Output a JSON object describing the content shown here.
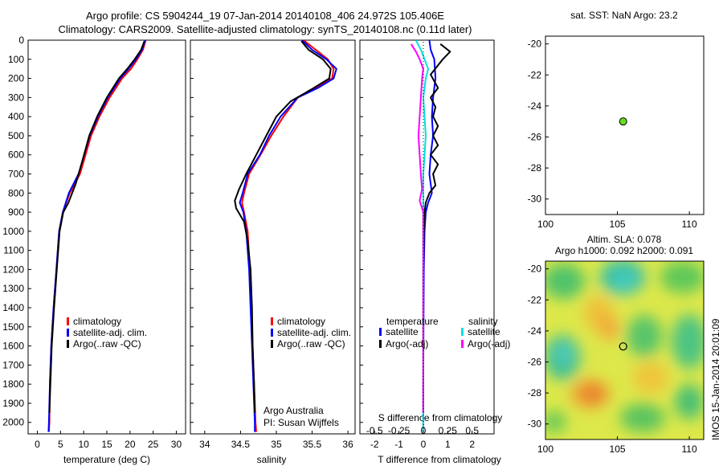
{
  "header": {
    "title_line1": "Argo profile: CS 5904244_19 07-Jan-2014 20140108_406 24.972S 105.406E",
    "title_line2": "Climatology: CARS2009. Satellite-adjusted climatology: synTS_20140108.nc (0.11d later)"
  },
  "colors": {
    "climatology": "#ff0000",
    "satellite": "#0000ff",
    "argo": "#000000",
    "salinity_satellite": "#00e0e0",
    "salinity_argo": "#ff00ff",
    "dot": "#66dd22"
  },
  "chart_data": [
    {
      "type": "line",
      "xlabel": "temperature (deg C)",
      "ylabel": "",
      "xlim": [
        -2,
        32
      ],
      "xticks": [
        0,
        5,
        10,
        15,
        20,
        25,
        30
      ],
      "ylim": [
        2060,
        0
      ],
      "yticks": [
        0,
        100,
        200,
        300,
        400,
        500,
        600,
        700,
        800,
        900,
        1000,
        1100,
        1200,
        1300,
        1400,
        1500,
        1600,
        1700,
        1800,
        1900,
        2000
      ],
      "legend": [
        "climatology",
        "satellite-adj. clim.",
        "Argo(..raw -QC)"
      ],
      "legend_position": "bottom-center",
      "series": [
        {
          "name": "climatology",
          "points": [
            [
              23.4,
              0
            ],
            [
              22.8,
              50
            ],
            [
              21.6,
              100
            ],
            [
              20.2,
              150
            ],
            [
              18.3,
              200
            ],
            [
              15.6,
              300
            ],
            [
              13.4,
              400
            ],
            [
              11.6,
              500
            ],
            [
              10.4,
              600
            ],
            [
              9.2,
              700
            ],
            [
              7.0,
              800
            ],
            [
              5.5,
              900
            ],
            [
              4.7,
              1000
            ],
            [
              4.1,
              1200
            ],
            [
              3.5,
              1400
            ],
            [
              3.0,
              1600
            ],
            [
              2.7,
              1800
            ],
            [
              2.6,
              2000
            ],
            [
              2.5,
              2050
            ]
          ]
        },
        {
          "name": "satellite-adj. clim.",
          "points": [
            [
              23.3,
              0
            ],
            [
              22.6,
              50
            ],
            [
              21.3,
              100
            ],
            [
              19.7,
              150
            ],
            [
              17.9,
              200
            ],
            [
              15.2,
              300
            ],
            [
              13.1,
              400
            ],
            [
              11.3,
              500
            ],
            [
              10.1,
              600
            ],
            [
              8.9,
              700
            ],
            [
              6.8,
              800
            ],
            [
              5.5,
              900
            ],
            [
              4.7,
              1000
            ],
            [
              4.1,
              1200
            ],
            [
              3.5,
              1400
            ],
            [
              3.0,
              1600
            ],
            [
              2.7,
              1800
            ],
            [
              2.5,
              2000
            ],
            [
              2.4,
              2050
            ]
          ]
        },
        {
          "name": "Argo(..raw -QC)",
          "points": [
            [
              23.1,
              5
            ],
            [
              22.4,
              50
            ],
            [
              21.0,
              100
            ],
            [
              19.4,
              150
            ],
            [
              17.6,
              200
            ],
            [
              15.0,
              300
            ],
            [
              12.9,
              400
            ],
            [
              11.2,
              500
            ],
            [
              10.3,
              580
            ],
            [
              9.5,
              650
            ],
            [
              8.3,
              750
            ],
            [
              6.7,
              850
            ],
            [
              5.6,
              900
            ],
            [
              4.8,
              1000
            ],
            [
              4.2,
              1200
            ],
            [
              3.6,
              1400
            ],
            [
              3.1,
              1600
            ],
            [
              2.8,
              1800
            ],
            [
              2.6,
              1950
            ]
          ]
        }
      ]
    },
    {
      "type": "line",
      "xlabel": "salinity",
      "ylabel": "",
      "xlim": [
        33.8,
        36.1
      ],
      "xticks": [
        34,
        34.5,
        35,
        35.5,
        36
      ],
      "ylim": [
        2060,
        0
      ],
      "legend": [
        "climatology",
        "satellite-adj. clim.",
        "Argo(..raw -QC)"
      ],
      "legend_position": "bottom-right",
      "annotation": [
        "Argo Australia",
        "PI: Susan Wijffels"
      ],
      "series": [
        {
          "name": "climatology",
          "points": [
            [
              35.38,
              0
            ],
            [
              35.55,
              50
            ],
            [
              35.72,
              100
            ],
            [
              35.8,
              150
            ],
            [
              35.78,
              200
            ],
            [
              35.55,
              250
            ],
            [
              35.3,
              300
            ],
            [
              35.1,
              400
            ],
            [
              34.93,
              500
            ],
            [
              34.78,
              600
            ],
            [
              34.62,
              700
            ],
            [
              34.55,
              800
            ],
            [
              34.52,
              850
            ],
            [
              34.55,
              900
            ],
            [
              34.6,
              1000
            ],
            [
              34.63,
              1200
            ],
            [
              34.65,
              1400
            ],
            [
              34.67,
              1600
            ],
            [
              34.69,
              1800
            ],
            [
              34.71,
              2000
            ],
            [
              34.72,
              2050
            ]
          ]
        },
        {
          "name": "satellite-adj. clim.",
          "points": [
            [
              35.36,
              0
            ],
            [
              35.5,
              50
            ],
            [
              35.7,
              100
            ],
            [
              35.84,
              150
            ],
            [
              35.8,
              200
            ],
            [
              35.58,
              250
            ],
            [
              35.3,
              300
            ],
            [
              35.06,
              400
            ],
            [
              34.9,
              500
            ],
            [
              34.77,
              600
            ],
            [
              34.6,
              700
            ],
            [
              34.53,
              800
            ],
            [
              34.49,
              850
            ],
            [
              34.54,
              900
            ],
            [
              34.58,
              1000
            ],
            [
              34.62,
              1200
            ],
            [
              34.64,
              1400
            ],
            [
              34.66,
              1600
            ],
            [
              34.68,
              1800
            ],
            [
              34.7,
              2000
            ],
            [
              34.7,
              2050
            ]
          ]
        },
        {
          "name": "Argo(..raw -QC)",
          "points": [
            [
              35.35,
              5
            ],
            [
              35.45,
              50
            ],
            [
              35.65,
              100
            ],
            [
              35.76,
              150
            ],
            [
              35.74,
              200
            ],
            [
              35.48,
              260
            ],
            [
              35.2,
              320
            ],
            [
              35.0,
              400
            ],
            [
              34.86,
              500
            ],
            [
              34.72,
              600
            ],
            [
              34.58,
              700
            ],
            [
              34.48,
              780
            ],
            [
              34.42,
              840
            ],
            [
              34.44,
              880
            ],
            [
              34.55,
              950
            ],
            [
              34.6,
              1050
            ],
            [
              34.64,
              1200
            ],
            [
              34.66,
              1400
            ],
            [
              34.67,
              1600
            ],
            [
              34.69,
              1800
            ],
            [
              34.7,
              1950
            ]
          ]
        }
      ]
    },
    {
      "type": "line",
      "xlabel": "T difference from climatology",
      "top_axis_label": "S difference from climatology",
      "xlim": [
        -2.6,
        2.9
      ],
      "xticks": [
        -2,
        -1,
        0,
        1,
        2
      ],
      "top_tick_labels": [
        "-0.5",
        "-0.25",
        "0",
        "0.25",
        "0.5"
      ],
      "ylim": [
        2060,
        0
      ],
      "legend": {
        "temperature_header": "temperature",
        "salinity_header": "salinity",
        "items": [
          "satellite",
          "Argo(-adj)",
          "satellite",
          "Argo(-adj)"
        ]
      },
      "series": [
        {
          "name": "satellite",
          "group": "temperature",
          "points": [
            [
              0.25,
              0
            ],
            [
              0.3,
              50
            ],
            [
              0.45,
              100
            ],
            [
              0.5,
              200
            ],
            [
              0.4,
              300
            ],
            [
              0.35,
              400
            ],
            [
              0.4,
              500
            ],
            [
              0.3,
              600
            ],
            [
              0.25,
              700
            ],
            [
              0.35,
              800
            ],
            [
              0.2,
              850
            ],
            [
              0.1,
              900
            ],
            [
              0.05,
              1000
            ],
            [
              0.02,
              1200
            ],
            [
              0.01,
              1500
            ],
            [
              0.0,
              1800
            ],
            [
              0.0,
              2050
            ]
          ]
        },
        {
          "name": "Argo(-adj)",
          "group": "temperature",
          "points": [
            [
              0.7,
              20
            ],
            [
              1.1,
              60
            ],
            [
              0.8,
              100
            ],
            [
              0.3,
              180
            ],
            [
              0.6,
              250
            ],
            [
              0.3,
              300
            ],
            [
              0.5,
              350
            ],
            [
              0.4,
              400
            ],
            [
              0.6,
              450
            ],
            [
              0.4,
              500
            ],
            [
              0.6,
              550
            ],
            [
              0.3,
              600
            ],
            [
              0.6,
              650
            ],
            [
              0.4,
              700
            ],
            [
              0.5,
              760
            ],
            [
              0.25,
              800
            ],
            [
              0.1,
              850
            ],
            [
              0.05,
              900
            ],
            [
              0.02,
              1000
            ],
            [
              0.0,
              1200
            ],
            [
              0.0,
              1500
            ],
            [
              0.0,
              1800
            ],
            [
              0.0,
              1950
            ]
          ]
        },
        {
          "name": "satellite",
          "group": "salinity",
          "points": [
            [
              -0.3,
              0
            ],
            [
              -0.1,
              50
            ],
            [
              0.05,
              100
            ],
            [
              0.2,
              150
            ],
            [
              0.1,
              200
            ],
            [
              0.0,
              300
            ],
            [
              0.05,
              400
            ],
            [
              0.1,
              500
            ],
            [
              0.05,
              600
            ],
            [
              0.0,
              700
            ],
            [
              0.0,
              800
            ],
            [
              0.0,
              1000
            ],
            [
              0.0,
              1500
            ],
            [
              0.0,
              2050
            ]
          ]
        },
        {
          "name": "Argo(-adj)",
          "group": "salinity",
          "points": [
            [
              -0.5,
              20
            ],
            [
              -0.3,
              60
            ],
            [
              -0.15,
              100
            ],
            [
              0.0,
              150
            ],
            [
              -0.05,
              200
            ],
            [
              -0.1,
              300
            ],
            [
              -0.15,
              400
            ],
            [
              -0.2,
              500
            ],
            [
              -0.15,
              600
            ],
            [
              -0.1,
              700
            ],
            [
              -0.05,
              780
            ],
            [
              -0.15,
              840
            ],
            [
              0.0,
              900
            ],
            [
              0.0,
              1000
            ],
            [
              0.0,
              1500
            ],
            [
              0.0,
              1950
            ]
          ]
        }
      ]
    },
    {
      "type": "scatter",
      "title": "sat. SST: NaN Argo: 23.2",
      "xlim": [
        100,
        111
      ],
      "xticks": [
        100,
        105,
        110
      ],
      "ylim": [
        -31,
        -19.5
      ],
      "yticks": [
        -20,
        -22,
        -24,
        -26,
        -28,
        -30
      ],
      "points": [
        [
          105.4,
          -25.0
        ]
      ]
    },
    {
      "type": "heatmap",
      "title_line1": "Altim. SLA: 0.078",
      "title_line2": "Argo h1000: 0.092 h2000: 0.091",
      "xlim": [
        100,
        111
      ],
      "xticks": [
        100,
        105,
        110
      ],
      "ylim": [
        -31,
        -19.5
      ],
      "yticks": [
        -20,
        -22,
        -24,
        -26,
        -28,
        -30
      ],
      "marker": [
        105.4,
        -25.0
      ],
      "side_label": "IMOS 15-Jan-2014 20:01:09"
    }
  ]
}
